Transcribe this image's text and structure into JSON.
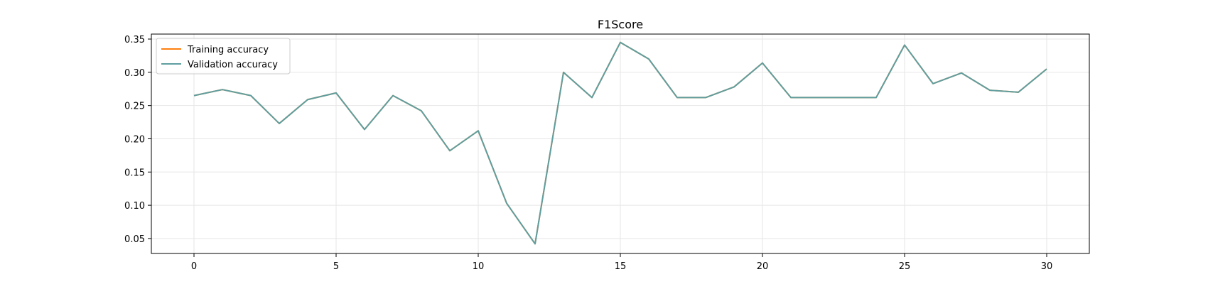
{
  "chart_data": {
    "type": "line",
    "title": "F1Score",
    "xlabel": "",
    "ylabel": "",
    "xlim": [
      -1.5,
      31.5
    ],
    "ylim": [
      0.0275,
      0.3575
    ],
    "x_ticks": [
      0,
      5,
      10,
      15,
      20,
      25,
      30
    ],
    "y_ticks": [
      0.05,
      0.1,
      0.15,
      0.2,
      0.25,
      0.3,
      0.35
    ],
    "x_tick_labels": [
      "0",
      "5",
      "10",
      "15",
      "20",
      "25",
      "30"
    ],
    "y_tick_labels": [
      "0.05",
      "0.10",
      "0.15",
      "0.20",
      "0.25",
      "0.30",
      "0.35"
    ],
    "grid": true,
    "legend_position": "top-left",
    "x": [
      0,
      1,
      2,
      3,
      4,
      5,
      6,
      7,
      8,
      9,
      10,
      11,
      12,
      13,
      14,
      15,
      16,
      17,
      18,
      19,
      20,
      21,
      22,
      23,
      24,
      25,
      26,
      27,
      28,
      29,
      30
    ],
    "series": [
      {
        "name": "Training accuracy",
        "color": "#ff7f0e",
        "values": [
          0.265,
          0.274,
          0.265,
          0.223,
          0.259,
          0.269,
          0.214,
          0.265,
          0.242,
          0.182,
          0.212,
          0.103,
          0.042,
          0.3,
          0.262,
          0.345,
          0.32,
          0.262,
          0.262,
          0.278,
          0.314,
          0.262,
          0.262,
          0.262,
          0.262,
          0.341,
          0.283,
          0.299,
          0.273,
          0.27,
          0.305
        ]
      },
      {
        "name": "Validation accuracy",
        "color": "#5f9ea0",
        "values": [
          0.265,
          0.274,
          0.265,
          0.223,
          0.259,
          0.269,
          0.214,
          0.265,
          0.242,
          0.182,
          0.212,
          0.103,
          0.042,
          0.3,
          0.262,
          0.345,
          0.32,
          0.262,
          0.262,
          0.278,
          0.314,
          0.262,
          0.262,
          0.262,
          0.262,
          0.341,
          0.283,
          0.299,
          0.273,
          0.27,
          0.305
        ]
      }
    ]
  }
}
